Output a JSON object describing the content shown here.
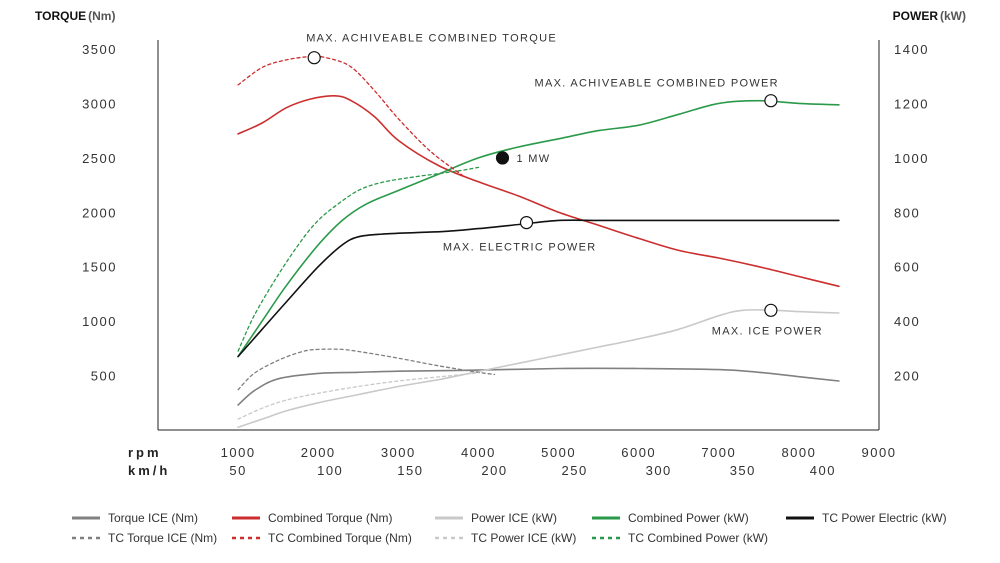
{
  "chart_data": {
    "type": "line",
    "ylabel_left": "TORQUE",
    "ylabel_left_unit": "(Nm)",
    "ylabel_right": "POWER",
    "ylabel_right_unit": "(kW)",
    "xlabel": "rpm",
    "x2label": "km/h",
    "xlim": [
      0,
      9000
    ],
    "ylim_left": [
      0,
      3500
    ],
    "ylim_right": [
      0,
      1400
    ],
    "x_ticks": [
      1000,
      2000,
      3000,
      4000,
      5000,
      6000,
      7000,
      8000,
      9000
    ],
    "x2_ticks": [
      {
        "rpm": 1000,
        "label": "50"
      },
      {
        "rpm": 2150,
        "label": "100"
      },
      {
        "rpm": 3150,
        "label": "150"
      },
      {
        "rpm": 4200,
        "label": "200"
      },
      {
        "rpm": 5200,
        "label": "250"
      },
      {
        "rpm": 6250,
        "label": "300"
      },
      {
        "rpm": 7300,
        "label": "350"
      },
      {
        "rpm": 8300,
        "label": "400"
      }
    ],
    "y_left_ticks": [
      500,
      1000,
      1500,
      2000,
      2500,
      3000,
      3500
    ],
    "y_right_ticks": [
      200,
      400,
      600,
      800,
      1000,
      1200,
      1400
    ],
    "series": [
      {
        "name": "Torque ICE (Nm)",
        "axis": "left",
        "color": "#808080",
        "dash": "solid",
        "x": [
          1000,
          1200,
          1500,
          2000,
          2500,
          3000,
          4000,
          5000,
          6000,
          7000,
          7500,
          8000,
          8500
        ],
        "y": [
          230,
          360,
          470,
          520,
          530,
          540,
          550,
          565,
          565,
          555,
          530,
          490,
          450
        ]
      },
      {
        "name": "Combined Torque (Nm)",
        "axis": "left",
        "color": "#cc2e2e",
        "dash": "solid",
        "x": [
          1000,
          1300,
          1600,
          1900,
          2200,
          2400,
          2700,
          3000,
          3500,
          4000,
          4500,
          5000,
          5500,
          6000,
          6500,
          7000,
          7500,
          8000,
          8500
        ],
        "y": [
          2720,
          2820,
          2960,
          3040,
          3070,
          3030,
          2880,
          2660,
          2430,
          2280,
          2150,
          2000,
          1880,
          1760,
          1650,
          1580,
          1500,
          1410,
          1320
        ]
      },
      {
        "name": "Power ICE (kW)",
        "axis": "right",
        "color": "#c9c9c9",
        "dash": "solid",
        "x": [
          1000,
          1300,
          1600,
          2000,
          2500,
          3000,
          3500,
          4000,
          4500,
          5000,
          5500,
          6000,
          6500,
          7000,
          7300,
          7700,
          8000,
          8500
        ],
        "y": [
          10,
          40,
          70,
          100,
          130,
          160,
          185,
          215,
          245,
          275,
          305,
          335,
          370,
          420,
          440,
          440,
          435,
          430
        ]
      },
      {
        "name": "Combined Power (kW)",
        "axis": "right",
        "color": "#2a9a4a",
        "dash": "solid",
        "x": [
          1000,
          1300,
          1600,
          2000,
          2300,
          2600,
          3000,
          3500,
          4000,
          4500,
          5000,
          5500,
          6000,
          6500,
          7000,
          7500,
          8000,
          8500
        ],
        "y": [
          270,
          400,
          530,
          680,
          770,
          830,
          880,
          940,
          1000,
          1040,
          1070,
          1100,
          1120,
          1160,
          1200,
          1210,
          1200,
          1195
        ]
      },
      {
        "name": "TC Power Electric (kW)",
        "axis": "right",
        "color": "#111111",
        "dash": "solid",
        "x": [
          1000,
          1300,
          1600,
          2000,
          2300,
          2500,
          2800,
          3200,
          3600,
          4000,
          4500,
          5000,
          5500,
          6000,
          7000,
          8000,
          8500
        ],
        "y": [
          270,
          370,
          470,
          600,
          680,
          710,
          720,
          725,
          730,
          740,
          755,
          770,
          770,
          770,
          770,
          770,
          770
        ]
      },
      {
        "name": "TC Torque ICE (Nm)",
        "axis": "left",
        "color": "#808080",
        "dash": "dashed",
        "x": [
          1000,
          1200,
          1500,
          1800,
          2000,
          2300,
          2600,
          3000,
          3500,
          4000,
          4200
        ],
        "y": [
          370,
          520,
          640,
          720,
          740,
          740,
          710,
          660,
          590,
          530,
          510
        ]
      },
      {
        "name": "TC Combined Torque (Nm)",
        "axis": "left",
        "color": "#cc2e2e",
        "dash": "dashed",
        "x": [
          1000,
          1300,
          1600,
          1900,
          2100,
          2400,
          2700,
          3000,
          3400,
          3800
        ],
        "y": [
          3170,
          3330,
          3400,
          3430,
          3420,
          3340,
          3120,
          2860,
          2560,
          2340
        ]
      },
      {
        "name": "TC Power ICE (kW)",
        "axis": "right",
        "color": "#c9c9c9",
        "dash": "dashed",
        "x": [
          1000,
          1300,
          1600,
          2000,
          2500,
          3000,
          3500,
          4000
        ],
        "y": [
          40,
          80,
          110,
          135,
          160,
          180,
          195,
          210
        ]
      },
      {
        "name": "TC Combined Power (kW)",
        "axis": "right",
        "color": "#2a9a4a",
        "dash": "dashed",
        "x": [
          1000,
          1200,
          1500,
          1800,
          2000,
          2200,
          2500,
          2800,
          3200,
          3700,
          4000
        ],
        "y": [
          290,
          420,
          570,
          700,
          770,
          820,
          880,
          910,
          930,
          950,
          965
        ]
      }
    ],
    "annotations": [
      {
        "text": "MAX. ACHIVEABLE COMBINED TORQUE",
        "x": 1950,
        "y": 3420,
        "axis": "left",
        "marker": "open",
        "label_anchor": "above"
      },
      {
        "text": "MAX. ACHIVEABLE COMBINED POWER",
        "x": 7650,
        "y": 1210,
        "axis": "right",
        "marker": "open",
        "label_anchor": "above-left"
      },
      {
        "text": "1 MW",
        "x": 4300,
        "y": 1000,
        "axis": "right",
        "marker": "filled",
        "label_anchor": "right"
      },
      {
        "text": "MAX. ELECTRIC POWER",
        "x": 4600,
        "y": 762,
        "axis": "right",
        "marker": "open",
        "label_anchor": "below"
      },
      {
        "text": "MAX. ICE POWER",
        "x": 7650,
        "y": 440,
        "axis": "right",
        "marker": "open",
        "label_anchor": "below-left"
      }
    ],
    "legend": {
      "position": "bottom",
      "columns": 5
    },
    "grid": false
  }
}
